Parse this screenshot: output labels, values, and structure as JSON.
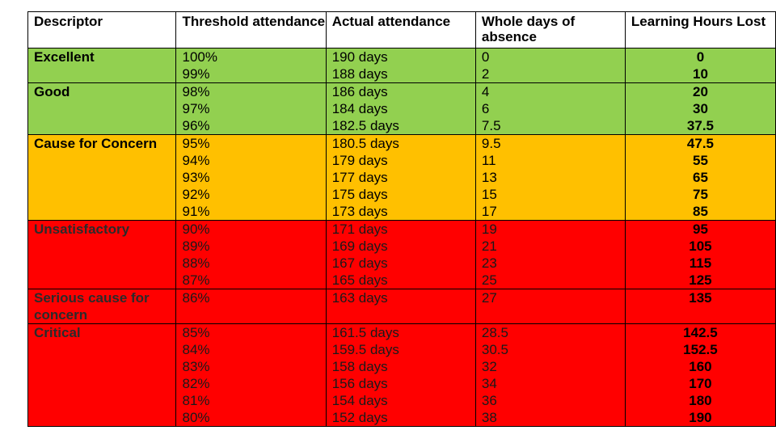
{
  "headers": {
    "descriptor": "Descriptor",
    "threshold": "Threshold attendance",
    "actual": "Actual attendance",
    "absence": "Whole days of absence",
    "hours": "Learning Hours Lost"
  },
  "bands": [
    {
      "descriptor": "Excellent",
      "color": "#92d050",
      "rows": [
        {
          "threshold": "100%",
          "actual": "190 days",
          "absence": "0",
          "hours": "0"
        },
        {
          "threshold": "99%",
          "actual": "188 days",
          "absence": "2",
          "hours": "10"
        }
      ]
    },
    {
      "descriptor": "Good",
      "color": "#92d050",
      "rows": [
        {
          "threshold": "98%",
          "actual": "186 days",
          "absence": "4",
          "hours": "20"
        },
        {
          "threshold": "97%",
          "actual": "184 days",
          "absence": "6",
          "hours": "30"
        },
        {
          "threshold": "96%",
          "actual": "182.5 days",
          "absence": "7.5",
          "hours": "37.5"
        }
      ]
    },
    {
      "descriptor": "Cause for Concern",
      "color": "#ffc000",
      "rows": [
        {
          "threshold": "95%",
          "actual": "180.5 days",
          "absence": "9.5",
          "hours": "47.5"
        },
        {
          "threshold": "94%",
          "actual": "179 days",
          "absence": "11",
          "hours": "55"
        },
        {
          "threshold": "93%",
          "actual": "177 days",
          "absence": "13",
          "hours": "65"
        },
        {
          "threshold": "92%",
          "actual": "175 days",
          "absence": "15",
          "hours": "75"
        },
        {
          "threshold": "91%",
          "actual": "173 days",
          "absence": "17",
          "hours": "85"
        }
      ]
    },
    {
      "descriptor": "Unsatisfactory",
      "color": "#ff0000",
      "rows": [
        {
          "threshold": "90%",
          "actual": "171 days",
          "absence": "19",
          "hours": "95"
        },
        {
          "threshold": "89%",
          "actual": "169 days",
          "absence": "21",
          "hours": "105"
        },
        {
          "threshold": "88%",
          "actual": "167 days",
          "absence": "23",
          "hours": "115"
        },
        {
          "threshold": "87%",
          "actual": "165 days",
          "absence": "25",
          "hours": "125"
        }
      ]
    },
    {
      "descriptor": "Serious cause for concern",
      "color": "#ff0000",
      "rows": [
        {
          "threshold": "86%",
          "actual": "163 days",
          "absence": "27",
          "hours": "135"
        }
      ]
    },
    {
      "descriptor": "Critical",
      "color": "#ff0000",
      "rows": [
        {
          "threshold": "85%",
          "actual": "161.5 days",
          "absence": "28.5",
          "hours": "142.5"
        },
        {
          "threshold": "84%",
          "actual": "159.5 days",
          "absence": "30.5",
          "hours": "152.5"
        },
        {
          "threshold": "83%",
          "actual": "158 days",
          "absence": "32",
          "hours": "160"
        },
        {
          "threshold": "82%",
          "actual": "156 days",
          "absence": "34",
          "hours": "170"
        },
        {
          "threshold": "81%",
          "actual": "154 days",
          "absence": "36",
          "hours": "180"
        },
        {
          "threshold": "80%",
          "actual": "152 days",
          "absence": "38",
          "hours": "190"
        }
      ]
    }
  ]
}
